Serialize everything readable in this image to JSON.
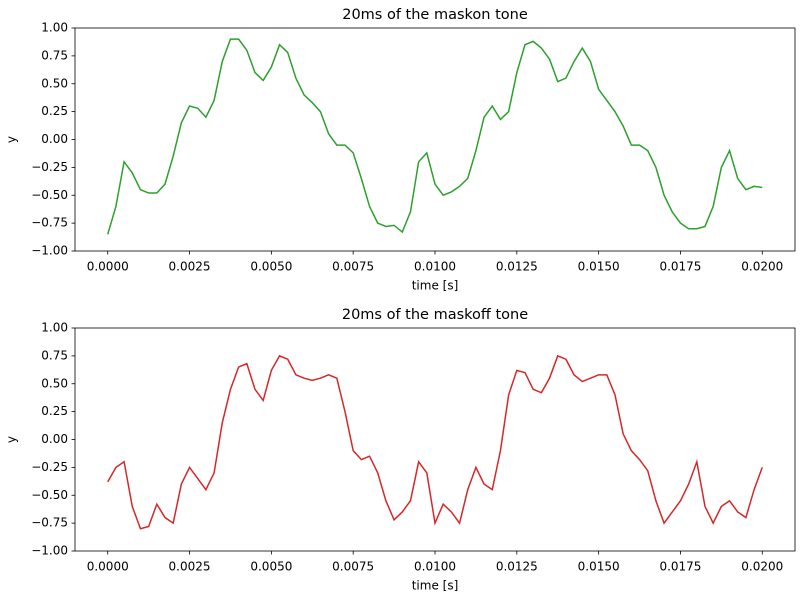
{
  "chart_data": [
    {
      "type": "line",
      "title": "20ms of the maskon tone",
      "xlabel": "time [s]",
      "ylabel": "y",
      "color": "#2ca02c",
      "x": [
        0,
        0.00025,
        0.0005,
        0.00075,
        0.001,
        0.00125,
        0.0015,
        0.00175,
        0.002,
        0.00225,
        0.0025,
        0.00275,
        0.003,
        0.00325,
        0.0035,
        0.00375,
        0.004,
        0.00425,
        0.0045,
        0.00475,
        0.005,
        0.00525,
        0.0055,
        0.00575,
        0.006,
        0.00625,
        0.0065,
        0.00675,
        0.007,
        0.00725,
        0.0075,
        0.00775,
        0.008,
        0.00825,
        0.0085,
        0.00875,
        0.009,
        0.00925,
        0.0095,
        0.00975,
        0.01,
        0.01025,
        0.0105,
        0.01075,
        0.011,
        0.01125,
        0.0115,
        0.01175,
        0.012,
        0.01225,
        0.0125,
        0.01275,
        0.013,
        0.01325,
        0.0135,
        0.01375,
        0.014,
        0.01425,
        0.0145,
        0.01475,
        0.015,
        0.01525,
        0.0155,
        0.01575,
        0.016,
        0.01625,
        0.0165,
        0.01675,
        0.017,
        0.01725,
        0.0175,
        0.01775,
        0.018,
        0.01825,
        0.0185,
        0.01875,
        0.019,
        0.01925,
        0.0195,
        0.01975,
        0.02
      ],
      "values": [
        -0.85,
        -0.6,
        -0.2,
        -0.3,
        -0.45,
        -0.48,
        -0.48,
        -0.4,
        -0.15,
        0.15,
        0.3,
        0.28,
        0.2,
        0.35,
        0.7,
        0.9,
        0.9,
        0.8,
        0.6,
        0.53,
        0.65,
        0.85,
        0.78,
        0.55,
        0.4,
        0.33,
        0.25,
        0.05,
        -0.05,
        -0.05,
        -0.12,
        -0.35,
        -0.6,
        -0.75,
        -0.78,
        -0.77,
        -0.83,
        -0.65,
        -0.2,
        -0.12,
        -0.4,
        -0.5,
        -0.47,
        -0.42,
        -0.35,
        -0.1,
        0.2,
        0.3,
        0.18,
        0.25,
        0.6,
        0.85,
        0.88,
        0.82,
        0.72,
        0.52,
        0.55,
        0.7,
        0.82,
        0.7,
        0.45,
        0.35,
        0.25,
        0.12,
        -0.05,
        -0.05,
        -0.1,
        -0.25,
        -0.5,
        -0.65,
        -0.75,
        -0.8,
        -0.8,
        -0.78,
        -0.6,
        -0.25,
        -0.1,
        -0.35,
        -0.45,
        -0.42,
        -0.43
      ],
      "xlim": [
        -0.001,
        0.021
      ],
      "ylim": [
        -1,
        1
      ],
      "xticks": [
        {
          "value": 0,
          "label": "0.0000"
        },
        {
          "value": 0.0025,
          "label": "0.0025"
        },
        {
          "value": 0.005,
          "label": "0.0050"
        },
        {
          "value": 0.0075,
          "label": "0.0075"
        },
        {
          "value": 0.01,
          "label": "0.0100"
        },
        {
          "value": 0.0125,
          "label": "0.0125"
        },
        {
          "value": 0.015,
          "label": "0.0150"
        },
        {
          "value": 0.0175,
          "label": "0.0175"
        },
        {
          "value": 0.02,
          "label": "0.0200"
        }
      ],
      "yticks": [
        {
          "value": -1,
          "label": "−1.00"
        },
        {
          "value": -0.75,
          "label": "−0.75"
        },
        {
          "value": -0.5,
          "label": "−0.50"
        },
        {
          "value": -0.25,
          "label": "−0.25"
        },
        {
          "value": 0,
          "label": "0.00"
        },
        {
          "value": 0.25,
          "label": "0.25"
        },
        {
          "value": 0.5,
          "label": "0.50"
        },
        {
          "value": 0.75,
          "label": "0.75"
        },
        {
          "value": 1,
          "label": "1.00"
        }
      ]
    },
    {
      "type": "line",
      "title": "20ms of the maskoff tone",
      "xlabel": "time [s]",
      "ylabel": "y",
      "color": "#d62728",
      "x": [
        0,
        0.00025,
        0.0005,
        0.00075,
        0.001,
        0.00125,
        0.0015,
        0.00175,
        0.002,
        0.00225,
        0.0025,
        0.00275,
        0.003,
        0.00325,
        0.0035,
        0.00375,
        0.004,
        0.00425,
        0.0045,
        0.00475,
        0.005,
        0.00525,
        0.0055,
        0.00575,
        0.006,
        0.00625,
        0.0065,
        0.00675,
        0.007,
        0.00725,
        0.0075,
        0.00775,
        0.008,
        0.00825,
        0.0085,
        0.00875,
        0.009,
        0.00925,
        0.0095,
        0.00975,
        0.01,
        0.01025,
        0.0105,
        0.01075,
        0.011,
        0.01125,
        0.0115,
        0.01175,
        0.012,
        0.01225,
        0.0125,
        0.01275,
        0.013,
        0.01325,
        0.0135,
        0.01375,
        0.014,
        0.01425,
        0.0145,
        0.01475,
        0.015,
        0.01525,
        0.0155,
        0.01575,
        0.016,
        0.01625,
        0.0165,
        0.01675,
        0.017,
        0.01725,
        0.0175,
        0.01775,
        0.018,
        0.01825,
        0.0185,
        0.01875,
        0.019,
        0.01925,
        0.0195,
        0.01975,
        0.02
      ],
      "values": [
        -0.38,
        -0.25,
        -0.2,
        -0.6,
        -0.8,
        -0.78,
        -0.58,
        -0.7,
        -0.75,
        -0.4,
        -0.25,
        -0.35,
        -0.45,
        -0.3,
        0.15,
        0.45,
        0.65,
        0.68,
        0.45,
        0.35,
        0.62,
        0.75,
        0.72,
        0.58,
        0.55,
        0.53,
        0.55,
        0.58,
        0.55,
        0.25,
        -0.1,
        -0.18,
        -0.15,
        -0.3,
        -0.55,
        -0.72,
        -0.65,
        -0.55,
        -0.2,
        -0.3,
        -0.75,
        -0.58,
        -0.65,
        -0.75,
        -0.45,
        -0.25,
        -0.4,
        -0.45,
        -0.1,
        0.4,
        0.62,
        0.6,
        0.45,
        0.42,
        0.55,
        0.75,
        0.72,
        0.58,
        0.52,
        0.55,
        0.58,
        0.58,
        0.4,
        0.05,
        -0.1,
        -0.18,
        -0.28,
        -0.55,
        -0.75,
        -0.65,
        -0.55,
        -0.4,
        -0.2,
        -0.6,
        -0.75,
        -0.6,
        -0.55,
        -0.65,
        -0.7,
        -0.45,
        -0.25
      ],
      "xlim": [
        -0.001,
        0.021
      ],
      "ylim": [
        -1,
        1
      ],
      "xticks": [
        {
          "value": 0,
          "label": "0.0000"
        },
        {
          "value": 0.0025,
          "label": "0.0025"
        },
        {
          "value": 0.005,
          "label": "0.0050"
        },
        {
          "value": 0.0075,
          "label": "0.0075"
        },
        {
          "value": 0.01,
          "label": "0.0100"
        },
        {
          "value": 0.0125,
          "label": "0.0125"
        },
        {
          "value": 0.015,
          "label": "0.0150"
        },
        {
          "value": 0.0175,
          "label": "0.0175"
        },
        {
          "value": 0.02,
          "label": "0.0200"
        }
      ],
      "yticks": [
        {
          "value": -1,
          "label": "−1.00"
        },
        {
          "value": -0.75,
          "label": "−0.75"
        },
        {
          "value": -0.5,
          "label": "−0.50"
        },
        {
          "value": -0.25,
          "label": "−0.25"
        },
        {
          "value": 0,
          "label": "0.00"
        },
        {
          "value": 0.25,
          "label": "0.25"
        },
        {
          "value": 0.5,
          "label": "0.50"
        },
        {
          "value": 0.75,
          "label": "0.75"
        },
        {
          "value": 1,
          "label": "1.00"
        }
      ]
    }
  ]
}
